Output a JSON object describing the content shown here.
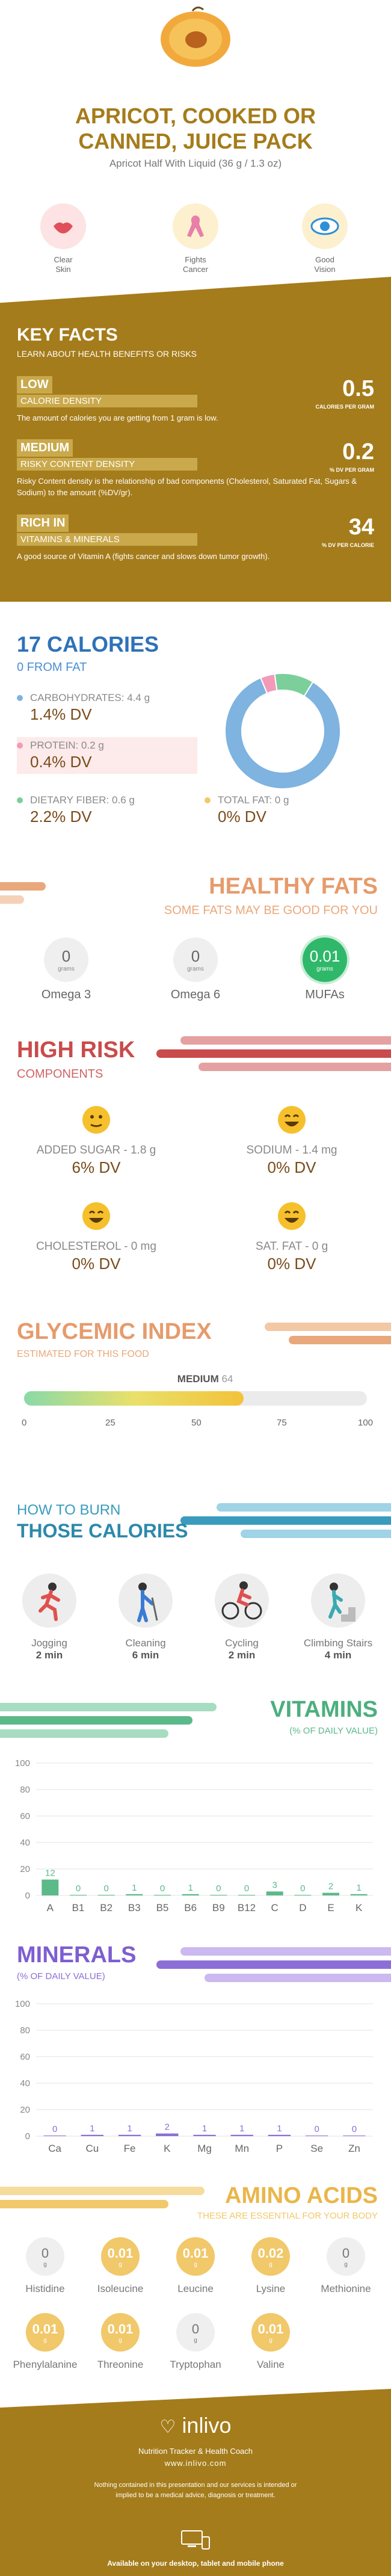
{
  "header": {
    "title_line1": "APRICOT, COOKED OR",
    "title_line2": "CANNED, JUICE PACK",
    "serving": "Apricot Half With Liquid (36 g / 1.3 oz)",
    "benefits": [
      {
        "icon": "lips-icon",
        "line1": "Clear",
        "line2": "Skin",
        "color": "#e0505a"
      },
      {
        "icon": "cancer-ribbon-icon",
        "line1": "Fights",
        "line2": "Cancer",
        "color": "#f3c23a"
      },
      {
        "icon": "eye-icon",
        "line1": "Good",
        "line2": "Vision",
        "color": "#2e8fd8"
      }
    ]
  },
  "key_facts": {
    "title": "KEY FACTS",
    "subtitle": "LEARN ABOUT HEALTH BENEFITS OR RISKS",
    "facts": [
      {
        "badge": "LOW",
        "label": "CALORIE DENSITY",
        "value": "0.5",
        "unit": "CALORIES PER GRAM",
        "desc": "The amount of calories you are getting from 1 gram is low."
      },
      {
        "badge": "MEDIUM",
        "label": "RISKY CONTENT DENSITY",
        "value": "0.2",
        "unit": "% DV PER GRAM",
        "desc": "Risky Content density is the relationship of bad components (Cholesterol, Saturated Fat, Sugars & Sodium) to the amount (%DV/gr)."
      },
      {
        "badge": "RICH  IN",
        "label": "VITAMINS & MINERALS",
        "value": "34",
        "unit": "% DV PER CALORIE",
        "desc": "A good source of Vitamin A (fights cancer and slows down tumor growth)."
      }
    ]
  },
  "calories": {
    "title": "17 CALORIES",
    "subtitle": "0 FROM FAT",
    "nutrients": [
      {
        "label": "CARBOHYDRATES: 4.4 g",
        "dv": "1.4% DV",
        "color": "#7fb3e0"
      },
      {
        "label": "PROTEIN: 0.2 g",
        "dv": "0.4% DV",
        "color": "#f29ab8"
      },
      {
        "label": "DIETARY FIBER: 0.6 g",
        "dv": "2.2% DV",
        "color": "#7ccf9b"
      },
      {
        "label": "TOTAL FAT: 0 g",
        "dv": "0% DV",
        "color": "#f4c76b"
      }
    ],
    "donut": [
      {
        "name": "CARBOHYDRATES",
        "value": 85,
        "color": "#7fb3e0"
      },
      {
        "name": "PROTEIN",
        "value": 4,
        "color": "#f29ab8"
      },
      {
        "name": "DIETARY FIBER",
        "value": 11,
        "color": "#7ccf9b"
      }
    ]
  },
  "healthy_fats": {
    "title": "HEALTHY FATS",
    "subtitle": "SOME FATS MAY BE GOOD FOR YOU",
    "items": [
      {
        "name": "Omega 3",
        "value": "0",
        "unit": "grams"
      },
      {
        "name": "Omega 6",
        "value": "0",
        "unit": "grams"
      },
      {
        "name": "MUFAs",
        "value": "0.01",
        "unit": "grams"
      }
    ]
  },
  "high_risk": {
    "title": "HIGH RISK",
    "subtitle": "COMPONENTS",
    "items": [
      {
        "label": "ADDED SUGAR - 1.8 g",
        "dv": "6% DV"
      },
      {
        "label": "SODIUM - 1.4 mg",
        "dv": "0% DV"
      },
      {
        "label": "CHOLESTEROL - 0 mg",
        "dv": "0% DV"
      },
      {
        "label": "SAT. FAT - 0 g",
        "dv": "0% DV"
      }
    ]
  },
  "glycemic": {
    "title": "GLYCEMIC INDEX",
    "subtitle": "ESTIMATED FOR THIS FOOD",
    "level": "MEDIUM",
    "value": "64",
    "value_num": 64,
    "ticks": [
      "0",
      "25",
      "50",
      "75",
      "100"
    ]
  },
  "burn": {
    "title_line1": "HOW TO BURN",
    "title_line2": "THOSE CALORIES",
    "activities": [
      {
        "name": "Jogging",
        "time": "2 min",
        "icon": "jogging-icon"
      },
      {
        "name": "Cleaning",
        "time": "6 min",
        "icon": "cleaning-icon"
      },
      {
        "name": "Cycling",
        "time": "2 min",
        "icon": "cycling-icon"
      },
      {
        "name": "Climbing Stairs",
        "time": "4 min",
        "icon": "climbing-stairs-icon"
      }
    ]
  },
  "chart_data": [
    {
      "type": "bar",
      "title": "VITAMINS",
      "subtitle": "(% OF DAILY VALUE)",
      "categories": [
        "A",
        "B1",
        "B2",
        "B3",
        "B5",
        "B6",
        "B9",
        "B12",
        "C",
        "D",
        "E",
        "K"
      ],
      "values": [
        12,
        0,
        0,
        1,
        0,
        1,
        0,
        0,
        3,
        0,
        2,
        1
      ],
      "ylim": [
        0,
        100
      ],
      "yticks": [
        "0",
        "20",
        "40",
        "60",
        "80",
        "100"
      ],
      "color": "#5cb98a"
    },
    {
      "type": "bar",
      "title": "MINERALS",
      "subtitle": "(% OF DAILY VALUE)",
      "categories": [
        "Ca",
        "Cu",
        "Fe",
        "K",
        "Mg",
        "Mn",
        "P",
        "Se",
        "Zn"
      ],
      "values": [
        0,
        1,
        1,
        2,
        1,
        1,
        1,
        0,
        0
      ],
      "ylim": [
        0,
        100
      ],
      "yticks": [
        "0",
        "20",
        "40",
        "60",
        "80",
        "100"
      ],
      "color": "#8c6fd6"
    }
  ],
  "amino": {
    "title": "AMINO ACIDS",
    "subtitle": "THESE ARE ESSENTIAL FOR YOUR BODY",
    "unit": "g",
    "items": [
      {
        "name": "Histidine",
        "value": "0"
      },
      {
        "name": "Isoleucine",
        "value": "0.01"
      },
      {
        "name": "Leucine",
        "value": "0.01"
      },
      {
        "name": "Lysine",
        "value": "0.02"
      },
      {
        "name": "Methionine",
        "value": "0"
      },
      {
        "name": "Phenylalanine",
        "value": "0.01"
      },
      {
        "name": "Threonine",
        "value": "0.01"
      },
      {
        "name": "Tryptophan",
        "value": "0"
      },
      {
        "name": "Valine",
        "value": "0.01"
      }
    ]
  },
  "footer": {
    "brand": "inlivo",
    "tagline": "Nutrition Tracker & Health Coach",
    "site": "www.inlivo.com",
    "disclaimer": "Nothing contained in this presentation and our services is intended or implied to be a medical advice, diagnosis or treatment.",
    "availability": "Available on your desktop, tablet and mobile phone"
  }
}
